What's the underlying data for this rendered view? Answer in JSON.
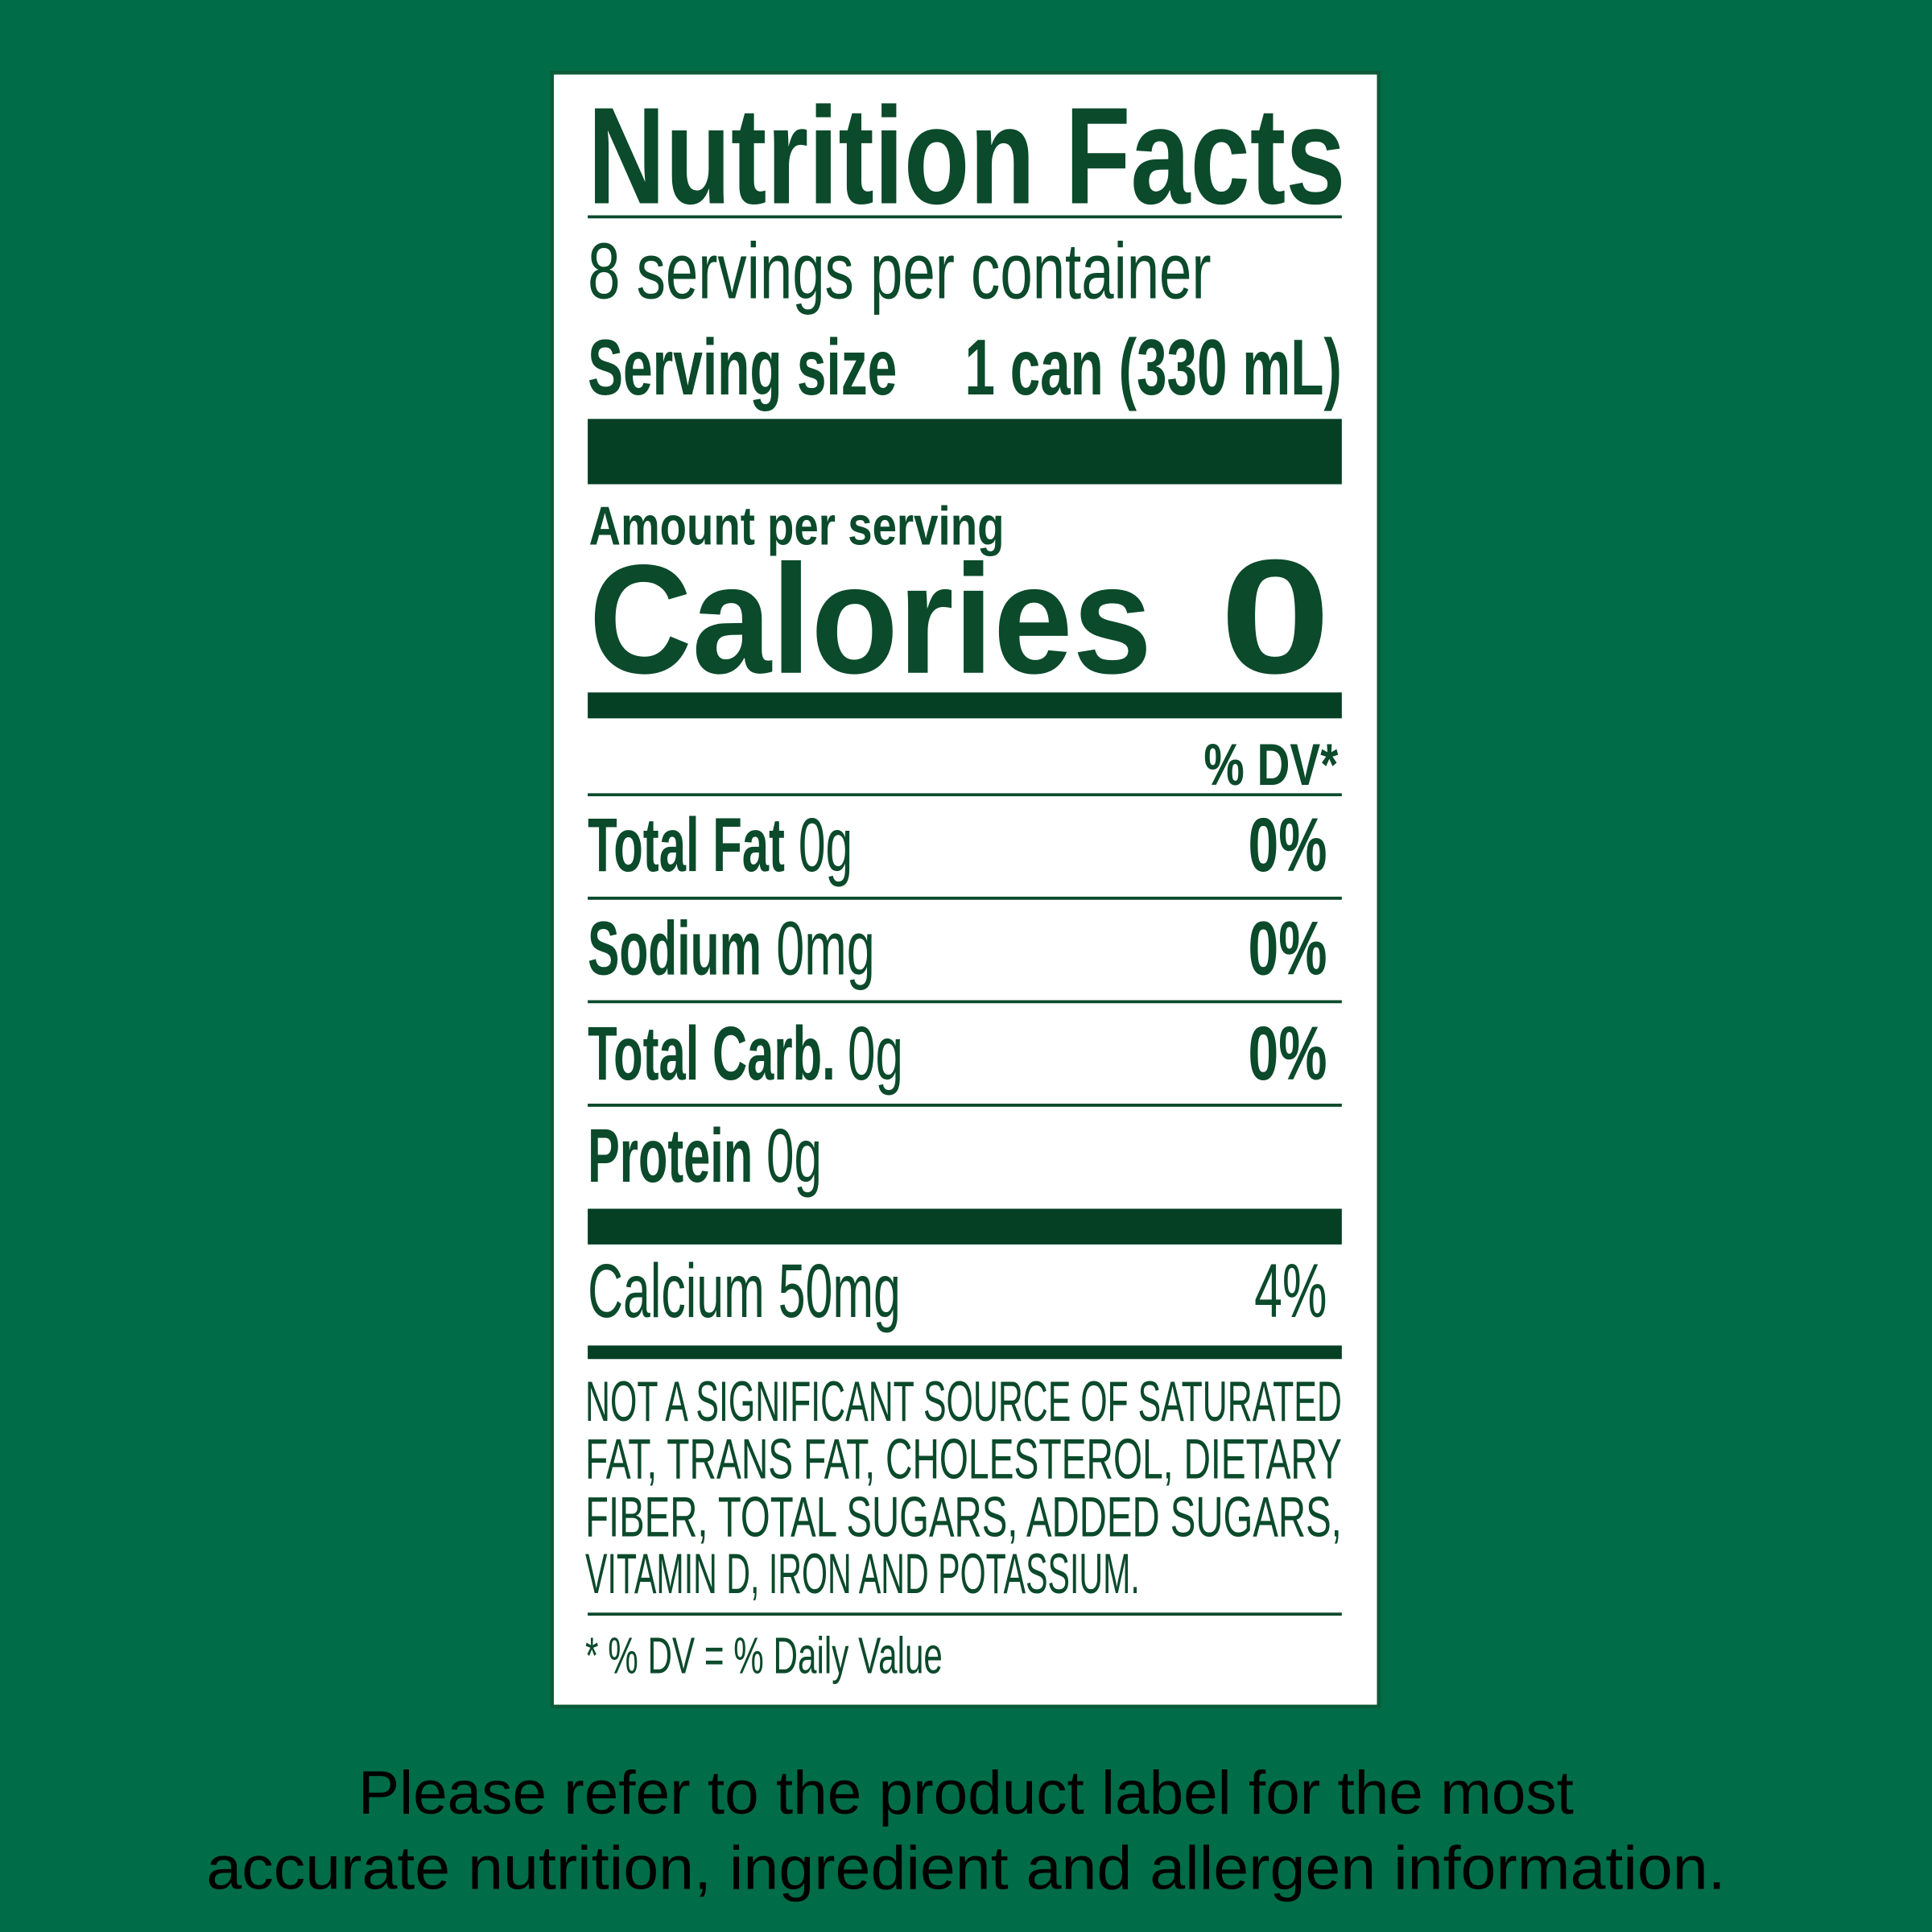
{
  "label": {
    "title": "Nutrition Facts",
    "servings": "8 servings per container",
    "serving_size_label": "Serving size",
    "serving_size_value": "1 can (330 mL)",
    "amount_per_serving": "Amount per serving",
    "calories_label": "Calories",
    "calories_value": "0",
    "dv_header": "% DV*",
    "nutrients": [
      {
        "name": "Total Fat",
        "amount": "0g",
        "dv": "0%"
      },
      {
        "name": "Sodium",
        "amount": "0mg",
        "dv": "0%"
      },
      {
        "name": "Total Carb.",
        "amount": "0g",
        "dv": "0%"
      },
      {
        "name": "Protein",
        "amount": "0g"
      }
    ],
    "calcium": {
      "name": "Calcium 50mg",
      "dv": "4%"
    },
    "footnote": [
      "NOT A SIGNIFICANT SOURCE OF SATURATED",
      "FAT, TRANS FAT, CHOLESTEROL, DIETARY",
      "FIBER, TOTAL SUGARS, ADDED SUGARS,",
      "VITAMIN D, IRON AND POTASSIUM."
    ],
    "dv_note": "* % DV = % Daily Value"
  },
  "disclaimer": [
    "Please refer to the product label for the most",
    "accurate nutrition, ingredient and allergen information."
  ]
}
